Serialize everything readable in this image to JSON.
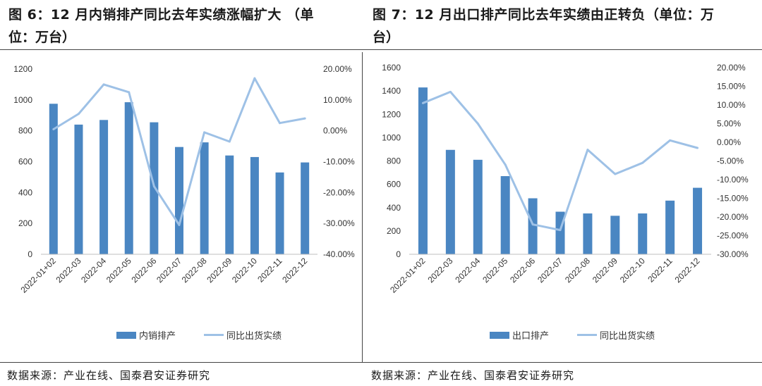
{
  "left": {
    "title_line1": "图 6：12 月内销排产同比去年实绩涨幅扩大 （单",
    "title_line2": "位：万台）",
    "source": "数据来源：产业在线、国泰君安证券研究",
    "legend": {
      "bar": "内销排产",
      "line": "同比出货实绩"
    }
  },
  "right": {
    "title_line1": "图 7：12 月出口排产同比去年实绩由正转负（单位：万",
    "title_line2": "台）",
    "source": "数据来源：产业在线、国泰君安证券研究",
    "legend": {
      "bar": "出口排产",
      "line": "同比出货实绩"
    }
  },
  "colors": {
    "bar": "#4A86C2",
    "line": "#9EC1E6"
  },
  "chart_data": [
    {
      "type": "bar",
      "categories": [
        "2022-01+02",
        "2022-03",
        "2022-04",
        "2022-05",
        "2022-06",
        "2022-07",
        "2022-08",
        "2022-09",
        "2022-10",
        "2022-11",
        "2022-12"
      ],
      "series": [
        {
          "name": "内销排产",
          "type": "bar",
          "axis": "left",
          "values": [
            975,
            840,
            870,
            985,
            855,
            695,
            725,
            640,
            630,
            530,
            595
          ]
        },
        {
          "name": "同比出货实绩",
          "type": "line",
          "axis": "right",
          "values": [
            0.5,
            5.5,
            15.0,
            12.5,
            -18.0,
            -30.5,
            -0.5,
            -3.5,
            17.0,
            2.5,
            4.0
          ]
        }
      ],
      "ylim_left": [
        0,
        1200
      ],
      "yticks_left": [
        "0",
        "200",
        "400",
        "600",
        "800",
        "1000",
        "1200"
      ],
      "ylim_right": [
        -40,
        20
      ],
      "yticks_right": [
        "-40.00%",
        "-30.00%",
        "-20.00%",
        "-10.00%",
        "0.00%",
        "10.00%",
        "20.00%"
      ],
      "grid": false,
      "legend_position": "bottom"
    },
    {
      "type": "bar",
      "categories": [
        "2022-01+02",
        "2022-03",
        "2022-04",
        "2022-05",
        "2022-06",
        "2022-07",
        "2022-08",
        "2022-09",
        "2022-10",
        "2022-11",
        "2022-12"
      ],
      "series": [
        {
          "name": "出口排产",
          "type": "bar",
          "axis": "left",
          "values": [
            1430,
            895,
            810,
            670,
            480,
            365,
            350,
            330,
            350,
            460,
            570
          ]
        },
        {
          "name": "同比出货实绩",
          "type": "line",
          "axis": "right",
          "values": [
            10.5,
            13.5,
            5.0,
            -6.0,
            -22.0,
            -23.5,
            -2.0,
            -8.5,
            -5.5,
            0.5,
            -1.5
          ]
        }
      ],
      "ylim_left": [
        0,
        1600
      ],
      "yticks_left": [
        "0",
        "200",
        "400",
        "600",
        "800",
        "1000",
        "1200",
        "1400",
        "1600"
      ],
      "ylim_right": [
        -30,
        20
      ],
      "yticks_right": [
        "-30.00%",
        "-25.00%",
        "-20.00%",
        "-15.00%",
        "-10.00%",
        "-5.00%",
        "0.00%",
        "5.00%",
        "10.00%",
        "15.00%",
        "20.00%"
      ],
      "grid": false,
      "legend_position": "bottom"
    }
  ]
}
